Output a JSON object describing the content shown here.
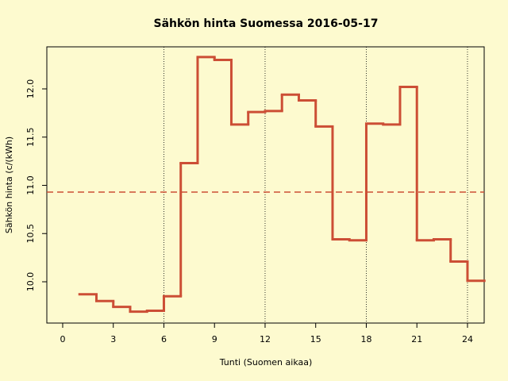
{
  "chart_data": {
    "type": "step",
    "title": "Sähkön hinta Suomessa 2016-05-17",
    "x_label": "Tunti (Suomen aikaa)",
    "y_label": "Sähkön hinta (c/(kWh)",
    "x": [
      1,
      2,
      3,
      4,
      5,
      6,
      7,
      8,
      9,
      10,
      11,
      12,
      13,
      14,
      15,
      16,
      17,
      18,
      19,
      20,
      21,
      22,
      23,
      24
    ],
    "series": [
      {
        "color": "#cc4e35",
        "values": [
          9.87,
          9.8,
          9.74,
          9.69,
          9.7,
          9.85,
          11.23,
          12.33,
          12.3,
          11.63,
          11.76,
          11.77,
          11.94,
          11.88,
          11.61,
          10.44,
          10.43,
          11.64,
          11.63,
          12.02,
          10.43,
          10.44,
          10.21,
          10.01
        ]
      }
    ],
    "mean": 10.93,
    "mean_color": "#cc4e35",
    "vlines": [
      6,
      12,
      18,
      24
    ],
    "xlim": [
      -0.94,
      24.99
    ],
    "ylim": [
      9.572,
      12.436
    ],
    "xticks": [
      0,
      3,
      6,
      9,
      12,
      15,
      18,
      21,
      24
    ],
    "yticks": [
      {
        "value": 10,
        "label": "10.0"
      },
      10.5,
      {
        "value": 11,
        "label": "11.0"
      },
      11.5,
      {
        "value": 12,
        "label": "12.0"
      }
    ]
  }
}
